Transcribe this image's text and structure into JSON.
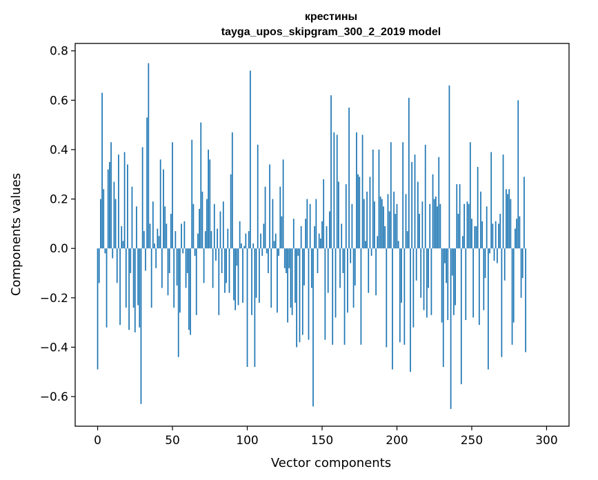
{
  "chart_data": {
    "type": "bar",
    "title": "крестины",
    "subtitle": "tayga_upos_skipgram_300_2_2019 model",
    "xlabel": "Vector components",
    "ylabel": "Components values",
    "xlim": [
      -15,
      315
    ],
    "ylim": [
      -0.72,
      0.83
    ],
    "xticks": [
      0,
      50,
      100,
      150,
      200,
      250,
      300
    ],
    "yticks": [
      -0.6,
      -0.4,
      -0.2,
      0.0,
      0.2,
      0.4,
      0.6,
      0.8
    ],
    "xtick_labels": [
      "0",
      "50",
      "100",
      "150",
      "200",
      "250",
      "300"
    ],
    "ytick_labels": [
      "−0.6",
      "−0.4",
      "−0.2",
      "0.0",
      "0.2",
      "0.4",
      "0.6",
      "0.8"
    ],
    "bar_color": "#1f77b4",
    "grid": false,
    "values": [
      -0.49,
      -0.14,
      0.2,
      0.63,
      0.24,
      -0.02,
      -0.32,
      0.32,
      0.35,
      0.43,
      -0.04,
      0.27,
      0.2,
      -0.14,
      0.38,
      -0.31,
      0.09,
      0.03,
      0.39,
      -0.24,
      0.34,
      -0.33,
      -0.1,
      0.25,
      -0.24,
      -0.34,
      0.17,
      -0.23,
      -0.32,
      -0.63,
      0.41,
      0.07,
      -0.09,
      0.53,
      0.75,
      0.1,
      -0.24,
      0.19,
      0.02,
      -0.08,
      0.08,
      0.05,
      0.36,
      -0.16,
      0.32,
      0.17,
      0.1,
      -0.19,
      -0.1,
      0.14,
      0.43,
      -0.24,
      0.07,
      -0.15,
      -0.44,
      -0.26,
      0.1,
      -0.02,
      0.11,
      -0.16,
      -0.1,
      -0.33,
      -0.35,
      0.44,
      0.18,
      -0.03,
      -0.27,
      0.06,
      0.16,
      0.51,
      0.23,
      -0.14,
      0.07,
      0.2,
      0.4,
      0.36,
      0.07,
      -0.16,
      0.18,
      -0.05,
      0.08,
      -0.27,
      0.15,
      -0.1,
      0.19,
      -0.18,
      -0.14,
      0.08,
      -0.18,
      0.3,
      0.47,
      -0.21,
      -0.25,
      -0.07,
      -0.23,
      0.11,
      0.02,
      -0.22,
      0.01,
      0.06,
      -0.48,
      0.07,
      0.72,
      -0.27,
      0.02,
      -0.48,
      -0.2,
      0.42,
      -0.22,
      0.06,
      -0.03,
      0.1,
      0.25,
      -0.02,
      -0.1,
      0.34,
      -0.24,
      0.2,
      0.03,
      0.06,
      -0.26,
      -0.03,
      0.25,
      0.13,
      0.36,
      -0.08,
      -0.1,
      -0.3,
      -0.08,
      -0.24,
      -0.27,
      0.12,
      -0.22,
      -0.4,
      -0.03,
      -0.38,
      0.09,
      -0.35,
      -0.15,
      0.12,
      0.2,
      -0.37,
      0.18,
      -0.16,
      -0.64,
      0.09,
      0.2,
      -0.1,
      0.06,
      0.04,
      0.11,
      0.28,
      -0.37,
      0.09,
      -0.18,
      0.15,
      0.62,
      -0.39,
      0.47,
      -0.28,
      0.46,
      0.27,
      -0.16,
      0.1,
      -0.1,
      -0.39,
      0.26,
      -0.26,
      0.57,
      -0.06,
      0.18,
      -0.24,
      -0.15,
      0.47,
      0.3,
      0.29,
      -0.39,
      0.46,
      0.2,
      0.03,
      0.23,
      -0.18,
      0.29,
      -0.03,
      0.4,
      0.19,
      -0.19,
      0.05,
      0.4,
      0.21,
      0.2,
      0.17,
      0.09,
      -0.4,
      0.22,
      0.15,
      0.43,
      -0.49,
      0.23,
      0.14,
      0.18,
      0.03,
      -0.38,
      -0.22,
      0.43,
      -0.39,
      0.22,
      0.07,
      0.61,
      -0.5,
      0.35,
      -0.32,
      0.38,
      -0.13,
      0.27,
      0.14,
      -0.2,
      0.19,
      -0.25,
      0.42,
      -0.28,
      -0.16,
      0.18,
      -0.27,
      0.3,
      0.2,
      0.21,
      0.17,
      0.37,
      0.18,
      -0.3,
      -0.48,
      -0.06,
      -0.14,
      -0.29,
      0.66,
      -0.65,
      -0.11,
      -0.27,
      -0.23,
      0.26,
      0.14,
      0.26,
      -0.55,
      0.05,
      0.18,
      -0.29,
      0.19,
      0.18,
      0.43,
      0.12,
      -0.28,
      0.09,
      0.09,
      0.33,
      -0.31,
      0.23,
      0.11,
      -0.25,
      -0.12,
      0.17,
      -0.49,
      -0.02,
      0.39,
      0.1,
      -0.05,
      0.11,
      -0.06,
      0.1,
      0.14,
      -0.44,
      0.38,
      -0.13,
      0.24,
      0.22,
      0.24,
      0.2,
      -0.39,
      -0.3,
      0.08,
      0.12,
      0.6,
      0.13,
      -0.2,
      -0.12,
      0.29,
      -0.42
    ]
  }
}
